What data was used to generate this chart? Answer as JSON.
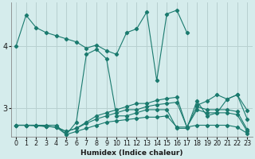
{
  "xlabel": "Humidex (Indice chaleur)",
  "ylabel": "",
  "background_color": "#d5ecec",
  "grid_color": "#b8d0d0",
  "line_color": "#1a7a6e",
  "xlim": [
    -0.5,
    23.5
  ],
  "ylim": [
    2.55,
    4.7
  ],
  "yticks": [
    3,
    4
  ],
  "xticks": [
    0,
    1,
    2,
    3,
    4,
    5,
    6,
    7,
    8,
    9,
    10,
    11,
    12,
    13,
    14,
    15,
    16,
    17,
    18,
    19,
    20,
    21,
    22,
    23
  ],
  "series": [
    [
      4.0,
      4.5,
      4.3,
      4.22,
      4.17,
      4.12,
      4.07,
      3.97,
      4.02,
      3.93,
      3.87,
      4.22,
      4.28,
      4.55,
      3.45,
      4.52,
      4.58,
      4.22,
      null,
      null,
      null,
      null,
      null,
      null
    ],
    [
      null,
      null,
      null,
      null,
      null,
      null,
      null,
      null,
      null,
      null,
      null,
      null,
      null,
      null,
      null,
      null,
      null,
      null,
      3.05,
      3.12,
      3.22,
      3.15,
      3.22,
      2.97
    ],
    [
      2.73,
      2.73,
      2.73,
      2.73,
      2.73,
      2.58,
      2.78,
      3.87,
      3.95,
      3.8,
      2.88,
      2.88,
      2.93,
      2.98,
      2.98,
      2.98,
      2.68,
      2.68,
      3.12,
      2.88,
      2.93,
      3.15,
      3.22,
      2.83
    ],
    [
      2.73,
      2.73,
      2.73,
      2.71,
      2.7,
      2.63,
      2.68,
      2.78,
      2.88,
      2.93,
      2.98,
      3.03,
      3.08,
      3.08,
      3.13,
      3.16,
      3.18,
      2.7,
      3.03,
      2.98,
      2.98,
      2.98,
      2.95,
      2.66
    ],
    [
      2.73,
      2.73,
      2.73,
      2.71,
      2.7,
      2.63,
      2.68,
      2.76,
      2.83,
      2.88,
      2.93,
      2.98,
      2.98,
      3.03,
      3.06,
      3.08,
      3.1,
      2.7,
      2.98,
      2.93,
      2.93,
      2.93,
      2.9,
      2.63
    ],
    [
      2.73,
      2.73,
      2.72,
      2.71,
      2.7,
      2.58,
      2.63,
      2.68,
      2.73,
      2.78,
      2.8,
      2.82,
      2.84,
      2.86,
      2.86,
      2.88,
      2.7,
      2.7,
      2.73,
      2.73,
      2.73,
      2.73,
      2.7,
      2.6
    ]
  ]
}
